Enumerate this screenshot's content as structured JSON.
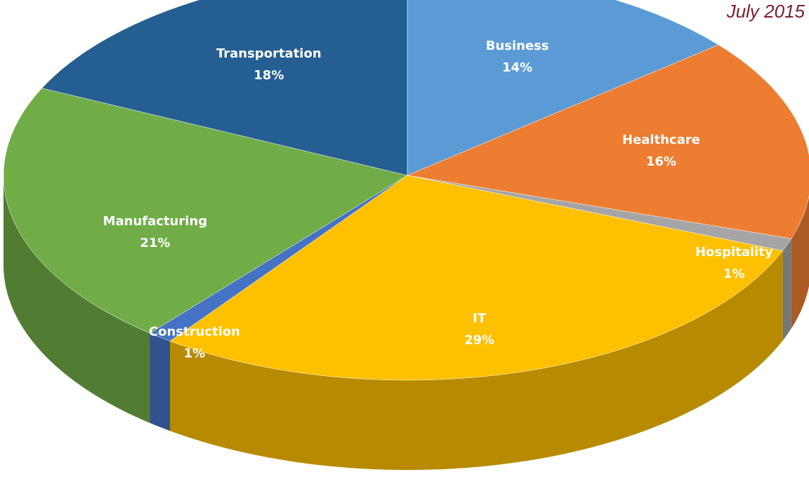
{
  "chart_data": {
    "type": "pie",
    "annotation": "July 2015",
    "categories": [
      "Business",
      "Healthcare",
      "Hospitality",
      "IT",
      "Construction",
      "Manufacturing",
      "Transportation"
    ],
    "values": [
      14,
      16,
      1,
      29,
      1,
      21,
      18
    ],
    "value_labels": [
      "14%",
      "16%",
      "1%",
      "29%",
      "1%",
      "21%",
      "18%"
    ],
    "colors": [
      "#5b9bd5",
      "#ed7d31",
      "#a5a5a5",
      "#ffc000",
      "#4472c4",
      "#70ad47",
      "#255e91"
    ]
  }
}
